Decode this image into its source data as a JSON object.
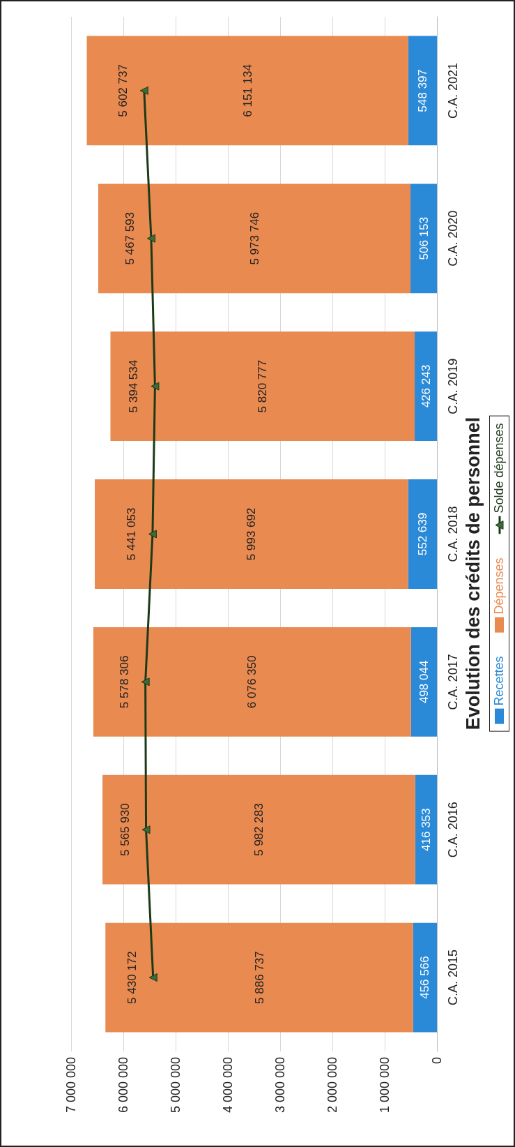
{
  "chart_data": {
    "type": "bar",
    "title": "Evolution des crédits de personnel",
    "categories": [
      "C.A. 2021",
      "C.A. 2020",
      "C.A. 2019",
      "C.A. 2018",
      "C.A. 2017",
      "C.A. 2016",
      "C.A. 2015"
    ],
    "stacked": true,
    "orientation": "horizontal",
    "series": [
      {
        "name": "Recettes",
        "type": "bar",
        "color": "#2a8ad8",
        "values": [
          548397,
          506153,
          426243,
          552639,
          498044,
          416353,
          456566
        ],
        "value_labels": [
          "548 397",
          "506 153",
          "426 243",
          "552 639",
          "498 044",
          "416 353",
          "456 566"
        ]
      },
      {
        "name": "Dépenses",
        "type": "bar",
        "color": "#e98a50",
        "values": [
          6151134,
          5973746,
          5820777,
          5993692,
          6076350,
          5982283,
          5886737
        ],
        "value_labels": [
          "6 151 134",
          "5 973 746",
          "5 820 777",
          "5 993 692",
          "6 076 350",
          "5 982 283",
          "5 886 737"
        ]
      },
      {
        "name": "Solde dépenses",
        "type": "line",
        "color": "#1c3a18",
        "marker": "triangle",
        "values": [
          5602737,
          5467593,
          5394534,
          5441053,
          5578306,
          5565930,
          5430172
        ],
        "value_labels": [
          "5 602 737",
          "5 467 593",
          "5 394 534",
          "5 441 053",
          "5 578 306",
          "5 565 930",
          "5 430 172"
        ]
      }
    ],
    "xlim": [
      7000000,
      0
    ],
    "xticks": [
      {
        "value": 0,
        "label": "0"
      },
      {
        "value": 1000000,
        "label": "1 000 000"
      },
      {
        "value": 2000000,
        "label": "2 000 000"
      },
      {
        "value": 3000000,
        "label": "3 000 000"
      },
      {
        "value": 4000000,
        "label": "4 000 000"
      },
      {
        "value": 5000000,
        "label": "5 000 000"
      },
      {
        "value": 6000000,
        "label": "6 000 000"
      },
      {
        "value": 7000000,
        "label": "7 000 000"
      }
    ],
    "grid": "x",
    "legend": "bottom"
  }
}
